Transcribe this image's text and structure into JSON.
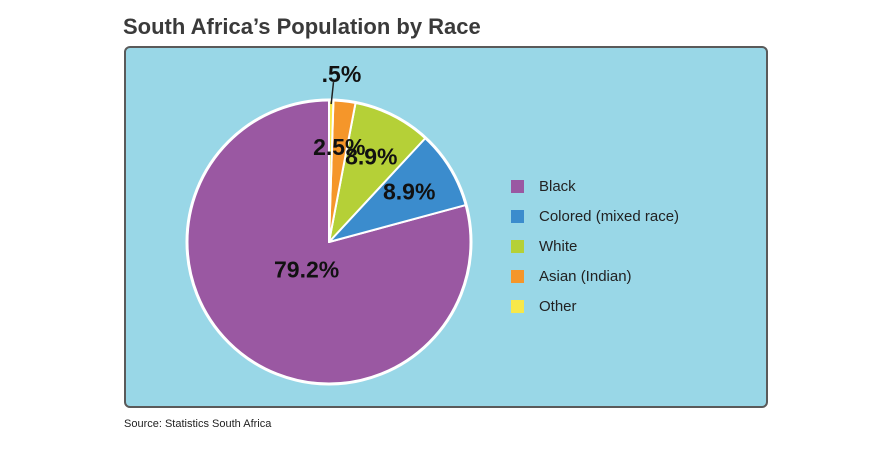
{
  "title": "South Africa’s Population by Race",
  "source": "Source: Statistics South Africa",
  "chart_data": {
    "type": "pie",
    "title": "South Africa’s Population by Race",
    "slices": [
      {
        "label": "Black",
        "value": 79.2,
        "display": "79.2%",
        "color": "#9a58a2"
      },
      {
        "label": "Colored (mixed race)",
        "value": 8.9,
        "display": "8.9%",
        "color": "#3b8ccd"
      },
      {
        "label": "White",
        "value": 8.9,
        "display": "8.9%",
        "color": "#b5d037"
      },
      {
        "label": "Asian (Indian)",
        "value": 2.5,
        "display": "2.5%",
        "color": "#f5962a"
      },
      {
        "label": "Other",
        "value": 0.5,
        "display": ".5%",
        "color": "#f7e84a"
      }
    ],
    "legend_position": "right",
    "start_angle": "12 o'clock, counterclockwise"
  }
}
